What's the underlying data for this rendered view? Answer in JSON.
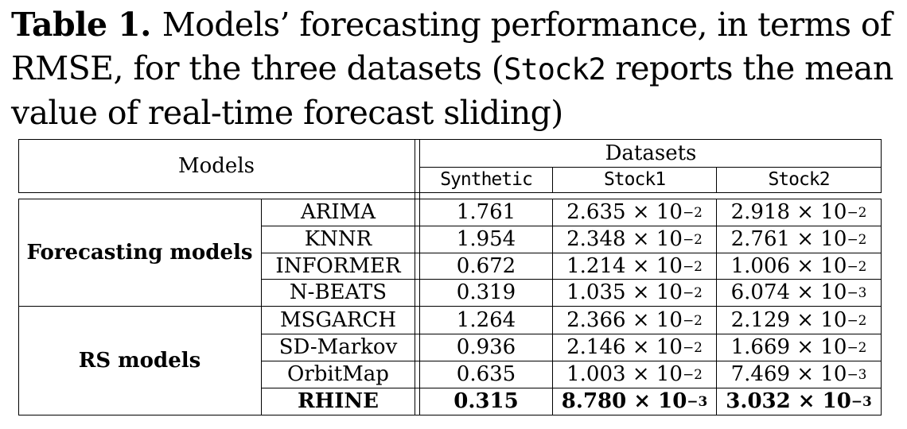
{
  "caption": {
    "label": "Table 1.",
    "text_part1": "Models’ forecasting performance, in terms of RMSE, for the three datasets (",
    "code": "Stock2",
    "text_part2": " reports the mean value of real-time forecast sliding)"
  },
  "header": {
    "models": "Models",
    "datasets": "Datasets",
    "columns": [
      "Synthetic",
      "Stock1",
      "Stock2"
    ]
  },
  "groups": [
    {
      "name": "Forecasting models",
      "rows": [
        {
          "model": "ARIMA",
          "synthetic": "1.761",
          "stock1": {
            "m": "2.635",
            "e": "−2"
          },
          "stock2": {
            "m": "2.918",
            "e": "−2"
          }
        },
        {
          "model": "KNNR",
          "synthetic": "1.954",
          "stock1": {
            "m": "2.348",
            "e": "−2"
          },
          "stock2": {
            "m": "2.761",
            "e": "−2"
          }
        },
        {
          "model": "INFORMER",
          "synthetic": "0.672",
          "stock1": {
            "m": "1.214",
            "e": "−2"
          },
          "stock2": {
            "m": "1.006",
            "e": "−2"
          }
        },
        {
          "model": "N-BEATS",
          "synthetic": "0.319",
          "stock1": {
            "m": "1.035",
            "e": "−2"
          },
          "stock2": {
            "m": "6.074",
            "e": "−3"
          }
        }
      ]
    },
    {
      "name": "RS models",
      "rows": [
        {
          "model": "MSGARCH",
          "synthetic": "1.264",
          "stock1": {
            "m": "2.366",
            "e": "−2"
          },
          "stock2": {
            "m": "2.129",
            "e": "−2"
          }
        },
        {
          "model": "SD-Markov",
          "synthetic": "0.936",
          "stock1": {
            "m": "2.146",
            "e": "−2"
          },
          "stock2": {
            "m": "1.669",
            "e": "−2"
          }
        },
        {
          "model": "OrbitMap",
          "synthetic": "0.635",
          "stock1": {
            "m": "1.003",
            "e": "−2"
          },
          "stock2": {
            "m": "7.469",
            "e": "−3"
          }
        },
        {
          "model": "RHINE",
          "synthetic": "0.315",
          "bold": true,
          "stock1": {
            "m": "8.780",
            "e": "−3"
          },
          "stock2": {
            "m": "3.032",
            "e": "−3"
          }
        }
      ]
    }
  ],
  "sci": {
    "times": "×",
    "base": "10"
  }
}
